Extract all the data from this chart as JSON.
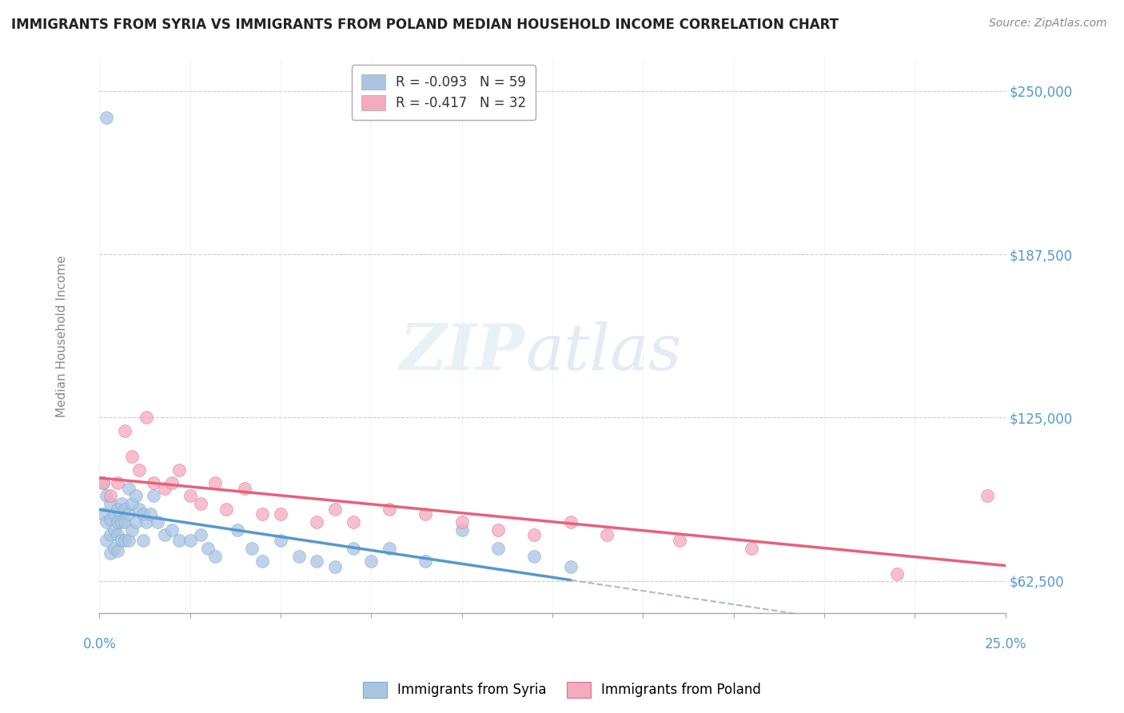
{
  "title": "IMMIGRANTS FROM SYRIA VS IMMIGRANTS FROM POLAND MEDIAN HOUSEHOLD INCOME CORRELATION CHART",
  "source": "Source: ZipAtlas.com",
  "ylabel": "Median Household Income",
  "xlim": [
    0.0,
    0.25
  ],
  "ylim": [
    50000,
    262500
  ],
  "yticks": [
    62500,
    125000,
    187500,
    250000
  ],
  "ytick_labels": [
    "$62,500",
    "$125,000",
    "$187,500",
    "$250,000"
  ],
  "xticks": [
    0.0,
    0.025,
    0.05,
    0.075,
    0.1,
    0.125,
    0.15,
    0.175,
    0.2,
    0.225,
    0.25
  ],
  "legend_syria_r": "R = -0.093",
  "legend_syria_n": "N = 59",
  "legend_poland_r": "R = -0.417",
  "legend_poland_n": "N = 32",
  "syria_color": "#aac4e2",
  "syria_edge_color": "#7aaad0",
  "poland_color": "#f5aabe",
  "poland_edge_color": "#e07090",
  "syria_line_color": "#5599cc",
  "poland_line_color": "#e8607a",
  "poland_dash_color": "#b0b8c8",
  "background_color": "#ffffff",
  "grid_color": "#cccccc",
  "syria_x": [
    0.001,
    0.001,
    0.002,
    0.002,
    0.002,
    0.003,
    0.003,
    0.003,
    0.003,
    0.004,
    0.004,
    0.004,
    0.005,
    0.005,
    0.005,
    0.005,
    0.006,
    0.006,
    0.006,
    0.007,
    0.007,
    0.007,
    0.008,
    0.008,
    0.008,
    0.009,
    0.009,
    0.01,
    0.01,
    0.011,
    0.012,
    0.012,
    0.013,
    0.014,
    0.015,
    0.016,
    0.018,
    0.02,
    0.022,
    0.025,
    0.028,
    0.03,
    0.032,
    0.038,
    0.042,
    0.045,
    0.05,
    0.055,
    0.06,
    0.065,
    0.07,
    0.075,
    0.08,
    0.09,
    0.1,
    0.11,
    0.12,
    0.13,
    0.002
  ],
  "syria_y": [
    100000,
    88000,
    95000,
    85000,
    78000,
    92000,
    86000,
    80000,
    73000,
    88000,
    82000,
    75000,
    90000,
    85000,
    80000,
    74000,
    92000,
    85000,
    78000,
    90000,
    85000,
    78000,
    98000,
    88000,
    78000,
    92000,
    82000,
    95000,
    85000,
    90000,
    88000,
    78000,
    85000,
    88000,
    95000,
    85000,
    80000,
    82000,
    78000,
    78000,
    80000,
    75000,
    72000,
    82000,
    75000,
    70000,
    78000,
    72000,
    70000,
    68000,
    75000,
    70000,
    75000,
    70000,
    82000,
    75000,
    72000,
    68000,
    240000
  ],
  "poland_x": [
    0.001,
    0.003,
    0.005,
    0.007,
    0.009,
    0.011,
    0.013,
    0.015,
    0.018,
    0.02,
    0.022,
    0.025,
    0.028,
    0.032,
    0.035,
    0.04,
    0.045,
    0.05,
    0.06,
    0.065,
    0.07,
    0.08,
    0.09,
    0.1,
    0.11,
    0.12,
    0.13,
    0.14,
    0.16,
    0.18,
    0.22,
    0.245
  ],
  "poland_y": [
    100000,
    95000,
    100000,
    120000,
    110000,
    105000,
    125000,
    100000,
    98000,
    100000,
    105000,
    95000,
    92000,
    100000,
    90000,
    98000,
    88000,
    88000,
    85000,
    90000,
    85000,
    90000,
    88000,
    85000,
    82000,
    80000,
    85000,
    80000,
    78000,
    75000,
    65000,
    95000
  ]
}
